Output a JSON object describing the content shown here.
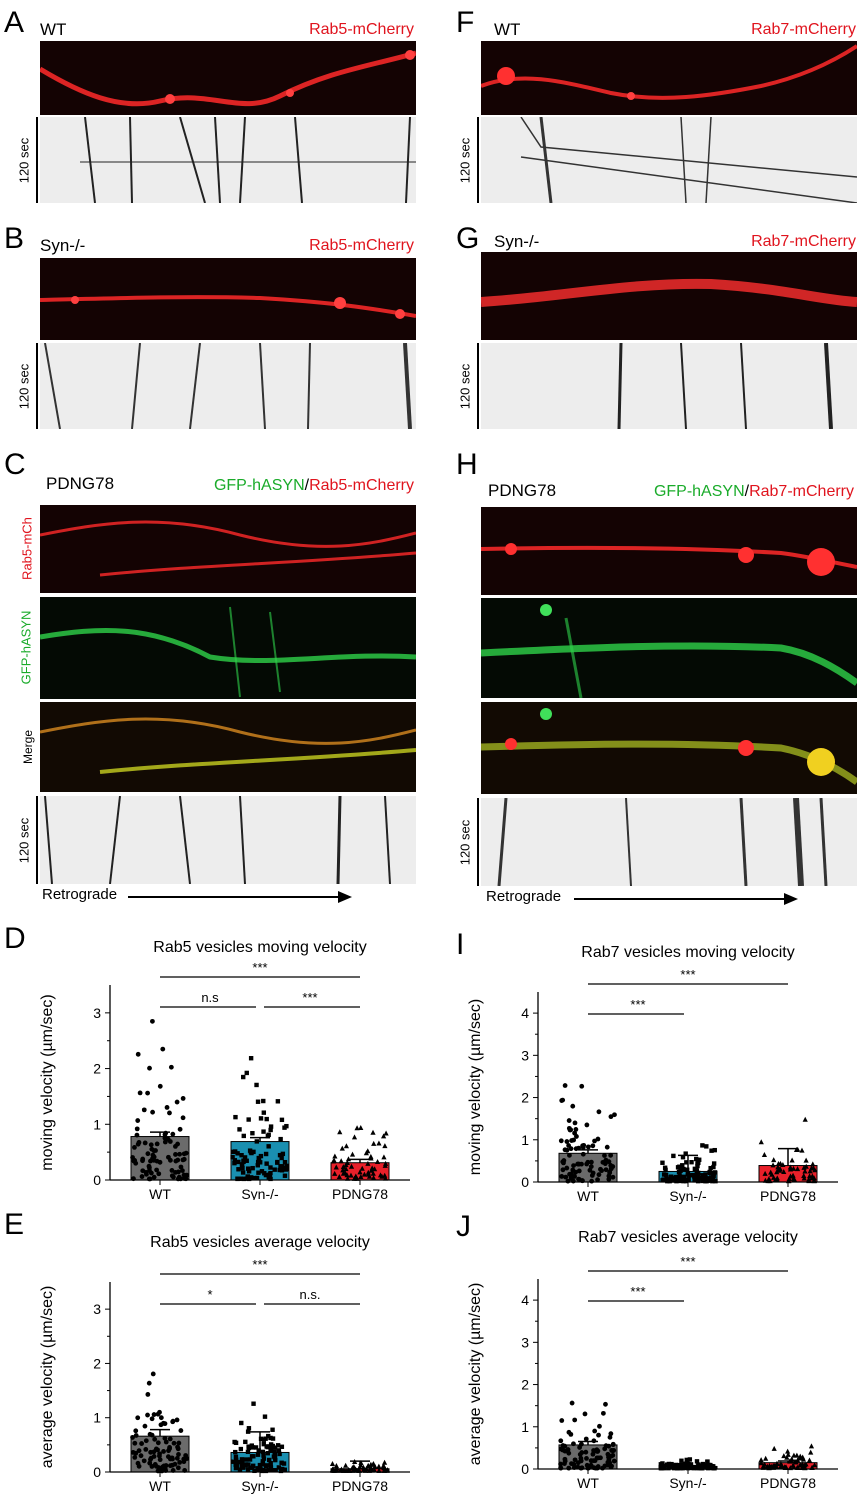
{
  "panels": {
    "A": {
      "letter": "A",
      "genotype": "WT",
      "marker": "Rab5-mCherry",
      "time": "120 sec"
    },
    "B": {
      "letter": "B",
      "genotype": "Syn-/-",
      "marker": "Rab5-mCherry",
      "time": "120 sec"
    },
    "C": {
      "letter": "C",
      "genotype": "PDNG78",
      "marker_green": "GFP-hASYN",
      "marker_sep": "/",
      "marker_red": "Rab5-mCherry",
      "row_labels": {
        "red": "Rab5-mCh",
        "green": "GFP-hASYN",
        "merge": "Merge"
      },
      "time": "120 sec",
      "direction": "Retrograde"
    },
    "F": {
      "letter": "F",
      "genotype": "WT",
      "marker": "Rab7-mCherry",
      "time": "120 sec"
    },
    "G": {
      "letter": "G",
      "genotype": "Syn-/-",
      "marker": "Rab7-mCherry",
      "time": "120 sec"
    },
    "H": {
      "letter": "H",
      "genotype": "PDNG78",
      "marker_green": "GFP-hASYN",
      "marker_sep": "/",
      "marker_red": "Rab7-mCherry",
      "time": "120 sec",
      "direction": "Retrograde"
    },
    "D": {
      "letter": "D"
    },
    "E": {
      "letter": "E"
    },
    "I": {
      "letter": "I"
    },
    "J": {
      "letter": "J"
    }
  },
  "colors": {
    "wt_bar": "#6b6b6b",
    "syn_bar": "#1a8fb0",
    "pdng_bar": "#e8202a",
    "signal_red": "#ff2a2a",
    "signal_green": "#2fd24a"
  },
  "chart_data": [
    {
      "id": "D",
      "type": "bar",
      "title": "Rab5 vesicles moving velocity",
      "ylabel": "moving velocity (µm/sec)",
      "categories": [
        "WT",
        "Syn-/-",
        "PDNG78"
      ],
      "values": [
        0.78,
        0.69,
        0.31
      ],
      "errors": [
        0.08,
        0.07,
        0.06
      ],
      "ylim": [
        0,
        3.5
      ],
      "yticks": [
        0,
        1,
        2,
        3
      ],
      "significance": [
        {
          "pair": [
            0,
            2
          ],
          "label": "***"
        },
        {
          "pair": [
            0,
            1
          ],
          "label": "n.s"
        },
        {
          "pair": [
            1,
            2
          ],
          "label": "***"
        }
      ]
    },
    {
      "id": "E",
      "type": "bar",
      "title": "Rab5 vesicles average velocity",
      "ylabel": "average velocity (µm/sec)",
      "categories": [
        "WT",
        "Syn-/-",
        "PDNG78"
      ],
      "values": [
        0.66,
        0.36,
        0.06
      ],
      "errors": [
        0.12,
        0.38,
        0.14
      ],
      "ylim": [
        0,
        3.5
      ],
      "yticks": [
        0,
        1,
        2,
        3
      ],
      "significance": [
        {
          "pair": [
            0,
            2
          ],
          "label": "***"
        },
        {
          "pair": [
            0,
            1
          ],
          "label": "*"
        },
        {
          "pair": [
            1,
            2
          ],
          "label": "n.s."
        }
      ]
    },
    {
      "id": "I",
      "type": "bar",
      "title": "Rab7 vesicles moving velocity",
      "ylabel": "moving velocity (µm/sec)",
      "categories": [
        "WT",
        "Syn-/-",
        "PDNG78"
      ],
      "values": [
        0.68,
        0.25,
        0.39
      ],
      "errors": [
        0.08,
        0.38,
        0.4
      ],
      "ylim": [
        0,
        4.5
      ],
      "yticks": [
        0,
        1,
        2,
        3,
        4
      ],
      "significance": [
        {
          "pair": [
            0,
            2
          ],
          "label": "***"
        },
        {
          "pair": [
            0,
            1
          ],
          "label": "***"
        }
      ]
    },
    {
      "id": "J",
      "type": "bar",
      "title": "Rab7 vesicles average velocity",
      "ylabel": "average velocity (µm/sec)",
      "categories": [
        "WT",
        "Syn-/-",
        "PDNG78"
      ],
      "values": [
        0.57,
        0.06,
        0.15
      ],
      "errors": [
        0.08,
        0.02,
        0.04
      ],
      "ylim": [
        0,
        4.5
      ],
      "yticks": [
        0,
        1,
        2,
        3,
        4
      ],
      "significance": [
        {
          "pair": [
            0,
            2
          ],
          "label": "***"
        },
        {
          "pair": [
            0,
            1
          ],
          "label": "***"
        }
      ]
    }
  ]
}
